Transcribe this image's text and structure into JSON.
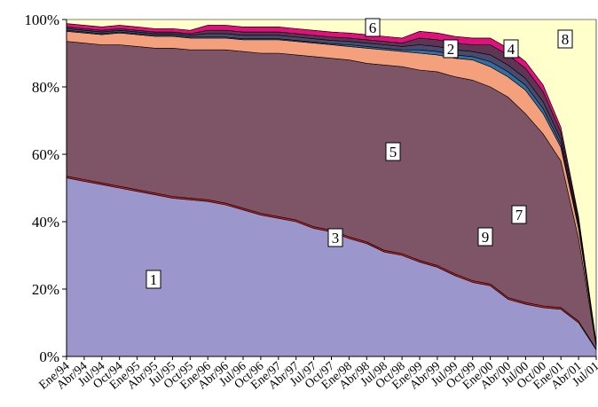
{
  "chart_data": {
    "type": "stacked_area",
    "categories": [
      "Ene/94",
      "Abr/94",
      "Jul/94",
      "Oct/94",
      "Ene/95",
      "Abr/95",
      "Jul/95",
      "Oct/95",
      "Ene/96",
      "Abr/96",
      "Jul/96",
      "Oct/96",
      "Ene/97",
      "Abr/97",
      "Jul/97",
      "Oct/97",
      "Ene/98",
      "Abr/98",
      "Jul/98",
      "Oct/98",
      "Ene/99",
      "Abr/99",
      "Jul/99",
      "Oct/99",
      "Ene/00",
      "Abr/00",
      "Jul/00",
      "Oct/00",
      "Ene/01",
      "Abr/01",
      "Jul/01"
    ],
    "series": [
      {
        "name": "1",
        "color": "#9b97cc",
        "values": [
          53,
          52,
          51,
          50,
          49,
          48,
          47,
          46.5,
          46,
          45,
          43.5,
          42,
          41,
          40,
          38,
          37,
          35,
          33.5,
          31,
          30,
          28,
          26.5,
          24,
          22,
          21,
          17,
          15.5,
          14.5,
          14,
          10,
          2
        ]
      },
      {
        "name": "3",
        "color": "#d42020",
        "values": [
          0.5,
          0.5,
          0.5,
          0.5,
          0.5,
          0.5,
          0.5,
          0.5,
          0.5,
          0.5,
          0.5,
          0.5,
          0.5,
          0.5,
          0.5,
          0.5,
          0.5,
          0.5,
          0.5,
          0.5,
          0.5,
          0.5,
          0.5,
          0.5,
          0.5,
          0.5,
          0.5,
          0.5,
          0.5,
          0.5,
          0.2
        ]
      },
      {
        "name": "5",
        "color": "#7d5566",
        "values": [
          40,
          40.5,
          41,
          42,
          42.5,
          43,
          44,
          44,
          44.5,
          45.5,
          46.5,
          47.5,
          48.5,
          49,
          50.5,
          51,
          52.5,
          53,
          55,
          55.5,
          56.5,
          57.5,
          58.5,
          59.5,
          58.5,
          59.5,
          56,
          51,
          43.5,
          24.5,
          0.8
        ]
      },
      {
        "name": "7",
        "color": "#f5a07c",
        "values": [
          3,
          3,
          3,
          3.5,
          3.5,
          3.5,
          3.5,
          3.5,
          3.5,
          3.5,
          3.5,
          4,
          4,
          4,
          4,
          4,
          4,
          4.5,
          4.5,
          4.5,
          5,
          5,
          5.5,
          6,
          6,
          6,
          7,
          6,
          4,
          3,
          0.5
        ]
      },
      {
        "name": "9",
        "color": "#2f6fa3",
        "values": [
          0.3,
          0.3,
          0.3,
          0.3,
          0.3,
          0.3,
          0.3,
          0.3,
          0.3,
          0.3,
          0.3,
          0.3,
          0.3,
          0.3,
          0.3,
          0.3,
          0.5,
          0.5,
          0.5,
          0.5,
          1,
          1,
          1,
          1,
          1.5,
          1.5,
          1.5,
          1.5,
          1,
          0.5,
          0.2
        ]
      },
      {
        "name": "2",
        "color": "#4b4a6e",
        "values": [
          0.5,
          0.5,
          0.5,
          0.5,
          0.5,
          0.5,
          0.5,
          0.5,
          1,
          1,
          1,
          1,
          1,
          1,
          1,
          1,
          1,
          1,
          1,
          1,
          1.5,
          1.5,
          1.5,
          1.5,
          2,
          2,
          2,
          2,
          1.5,
          1,
          0.2
        ]
      },
      {
        "name": "4",
        "color": "#5e3552",
        "values": [
          0.5,
          0.5,
          0.5,
          0.5,
          0.5,
          0.5,
          0.5,
          0.5,
          1,
          1,
          1,
          1,
          1,
          1,
          1,
          1,
          1,
          1,
          1,
          1,
          2,
          2,
          2,
          2,
          3,
          3,
          3,
          3,
          2,
          1,
          0.2
        ]
      },
      {
        "name": "6",
        "color": "#e0107c",
        "values": [
          1,
          1,
          1,
          1,
          1,
          1,
          1,
          1,
          1.5,
          1.5,
          1.5,
          1.5,
          1.5,
          1.5,
          1.5,
          1.5,
          1.5,
          1.5,
          1.5,
          1.5,
          2,
          2,
          2,
          2,
          2,
          2,
          2,
          2,
          1.5,
          1,
          0.2
        ]
      },
      {
        "name": "8",
        "color": "#ffffcc",
        "values": [
          1.2,
          1.7,
          2.2,
          1.7,
          2.2,
          2.7,
          2.7,
          3.2,
          1.7,
          1.7,
          2.2,
          2.2,
          2.2,
          2.7,
          3.2,
          3.7,
          4,
          4.5,
          5,
          5.5,
          3.5,
          4,
          5,
          5.5,
          5.5,
          8.5,
          12.5,
          19.5,
          32,
          58.5,
          95.7
        ]
      }
    ],
    "ylim": [
      0,
      100
    ],
    "yticks": [
      {
        "value": 0,
        "label": "0%"
      },
      {
        "value": 20,
        "label": "20%"
      },
      {
        "value": 40,
        "label": "40%"
      },
      {
        "value": 60,
        "label": "60%"
      },
      {
        "value": 80,
        "label": "80%"
      },
      {
        "value": 100,
        "label": "100%"
      }
    ]
  }
}
